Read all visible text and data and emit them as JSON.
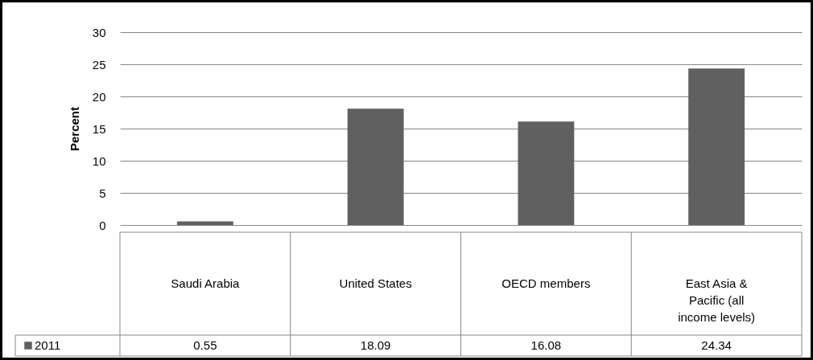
{
  "chart_data": {
    "type": "bar",
    "ylabel": "Percent",
    "categories": [
      "Saudi Arabia",
      "United States",
      "OECD members",
      "East Asia & Pacific (all income levels)"
    ],
    "series": [
      {
        "name": "2011",
        "color": "#606060",
        "values": [
          0.55,
          18.09,
          16.08,
          24.34
        ]
      }
    ],
    "ylim": [
      0,
      30
    ],
    "yticks": [
      0,
      5,
      10,
      15,
      20,
      25,
      30
    ],
    "grid": "y",
    "legend": "bottom left",
    "data_labels": true
  }
}
